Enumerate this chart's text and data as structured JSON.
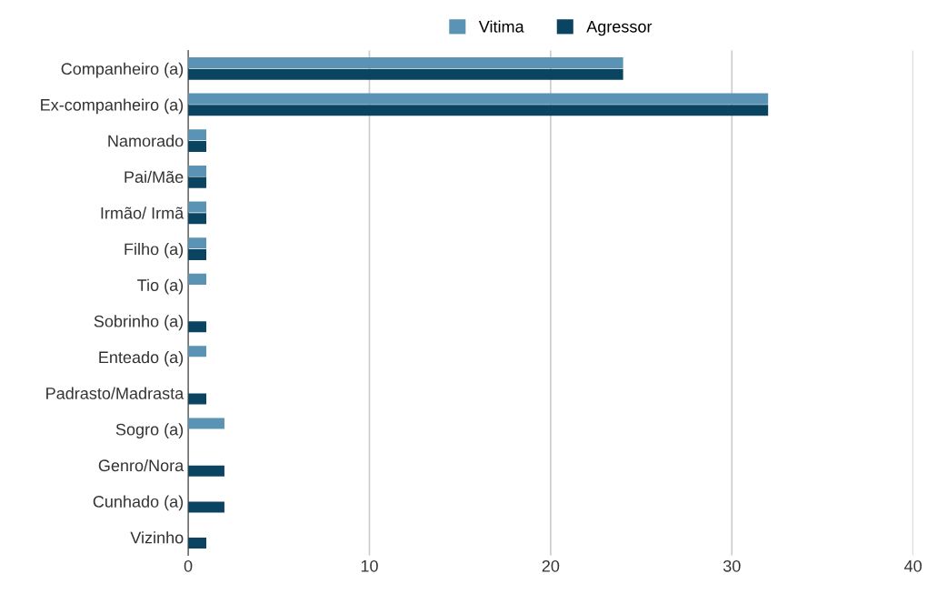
{
  "chart_data": {
    "type": "bar",
    "orientation": "horizontal",
    "categories": [
      "Companheiro (a)",
      "Ex-companheiro (a)",
      "Namorado",
      "Pai/Mãe",
      "Irmão/ Irmã",
      "Filho (a)",
      "Tio (a)",
      "Sobrinho (a)",
      "Enteado (a)",
      "Padrasto/Madrasta",
      "Sogro (a)",
      "Genro/Nora",
      "Cunhado (a)",
      "Vizinho"
    ],
    "series": [
      {
        "name": "Vitima",
        "color": "#5a93b3",
        "values": [
          24,
          32,
          1,
          1,
          1,
          1,
          1,
          0,
          1,
          0,
          2,
          0,
          0,
          0
        ]
      },
      {
        "name": "Agressor",
        "color": "#0b4461",
        "values": [
          24,
          32,
          1,
          1,
          1,
          1,
          0,
          1,
          0,
          1,
          0,
          2,
          2,
          1
        ]
      }
    ],
    "xlim": [
      0,
      40
    ],
    "xticks": [
      0,
      10,
      20,
      30,
      40
    ],
    "grid": "x",
    "legend": "top"
  }
}
